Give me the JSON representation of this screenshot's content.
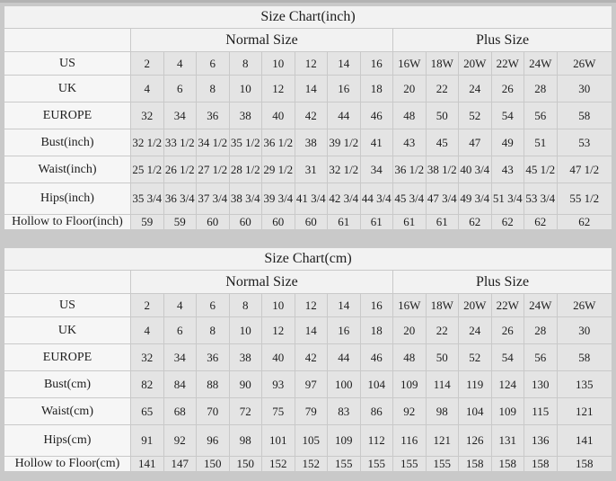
{
  "page": {
    "background_color": "#c9c9c9",
    "table_background": "#e4e4e4",
    "label_cell_background": "#f6f6f6",
    "header_cell_background": "#f2f2f2",
    "border_color": "#c9c9c9"
  },
  "tables": [
    {
      "title": "Size Chart(inch)",
      "group_headers": [
        {
          "label": "Normal Size",
          "span": 8
        },
        {
          "label": "Plus Size",
          "span": 6
        }
      ],
      "rows": [
        {
          "label": "US",
          "values": [
            "2",
            "4",
            "6",
            "8",
            "10",
            "12",
            "14",
            "16",
            "16W",
            "18W",
            "20W",
            "22W",
            "24W",
            "26W"
          ]
        },
        {
          "label": "UK",
          "values": [
            "4",
            "6",
            "8",
            "10",
            "12",
            "14",
            "16",
            "18",
            "20",
            "22",
            "24",
            "26",
            "28",
            "30"
          ]
        },
        {
          "label": "EUROPE",
          "values": [
            "32",
            "34",
            "36",
            "38",
            "40",
            "42",
            "44",
            "46",
            "48",
            "50",
            "52",
            "54",
            "56",
            "58"
          ]
        },
        {
          "label": "Bust(inch)",
          "values": [
            "32 1/2",
            "33 1/2",
            "34 1/2",
            "35 1/2",
            "36 1/2",
            "38",
            "39 1/2",
            "41",
            "43",
            "45",
            "47",
            "49",
            "51",
            "53"
          ]
        },
        {
          "label": "Waist(inch)",
          "values": [
            "25 1/2",
            "26 1/2",
            "27 1/2",
            "28 1/2",
            "29 1/2",
            "31",
            "32 1/2",
            "34",
            "36 1/2",
            "38 1/2",
            "40 3/4",
            "43",
            "45 1/2",
            "47 1/2"
          ]
        },
        {
          "label": "Hips(inch)",
          "values": [
            "35 3/4",
            "36 3/4",
            "37 3/4",
            "38 3/4",
            "39 3/4",
            "41 3/4",
            "42 3/4",
            "44 3/4",
            "45 3/4",
            "47 3/4",
            "49 3/4",
            "51 3/4",
            "53 3/4",
            "55 1/2"
          ]
        },
        {
          "label": "Hollow to Floor(inch)",
          "values": [
            "59",
            "59",
            "60",
            "60",
            "60",
            "60",
            "61",
            "61",
            "61",
            "61",
            "62",
            "62",
            "62",
            "62"
          ]
        }
      ]
    },
    {
      "title": "Size Chart(cm)",
      "group_headers": [
        {
          "label": "Normal Size",
          "span": 8
        },
        {
          "label": "Plus Size",
          "span": 6
        }
      ],
      "rows": [
        {
          "label": "US",
          "values": [
            "2",
            "4",
            "6",
            "8",
            "10",
            "12",
            "14",
            "16",
            "16W",
            "18W",
            "20W",
            "22W",
            "24W",
            "26W"
          ]
        },
        {
          "label": "UK",
          "values": [
            "4",
            "6",
            "8",
            "10",
            "12",
            "14",
            "16",
            "18",
            "20",
            "22",
            "24",
            "26",
            "28",
            "30"
          ]
        },
        {
          "label": "EUROPE",
          "values": [
            "32",
            "34",
            "36",
            "38",
            "40",
            "42",
            "44",
            "46",
            "48",
            "50",
            "52",
            "54",
            "56",
            "58"
          ]
        },
        {
          "label": "Bust(cm)",
          "values": [
            "82",
            "84",
            "88",
            "90",
            "93",
            "97",
            "100",
            "104",
            "109",
            "114",
            "119",
            "124",
            "130",
            "135"
          ]
        },
        {
          "label": "Waist(cm)",
          "values": [
            "65",
            "68",
            "70",
            "72",
            "75",
            "79",
            "83",
            "86",
            "92",
            "98",
            "104",
            "109",
            "115",
            "121"
          ]
        },
        {
          "label": "Hips(cm)",
          "values": [
            "91",
            "92",
            "96",
            "98",
            "101",
            "105",
            "109",
            "112",
            "116",
            "121",
            "126",
            "131",
            "136",
            "141"
          ]
        },
        {
          "label": "Hollow to Floor(cm)",
          "values": [
            "141",
            "147",
            "150",
            "150",
            "152",
            "152",
            "155",
            "155",
            "155",
            "155",
            "158",
            "158",
            "158",
            "158"
          ]
        }
      ]
    }
  ]
}
